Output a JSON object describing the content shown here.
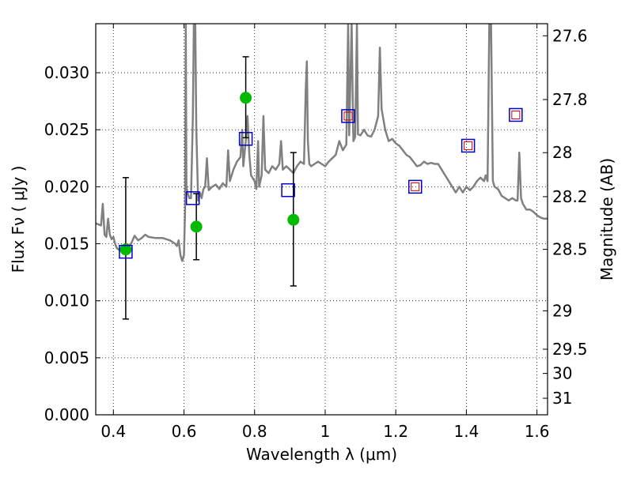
{
  "chart_data": {
    "type": "scatter",
    "title": "",
    "xlabel": "Wavelength  λ (μm)",
    "ylabel": "Flux  Fν  ( μJy )",
    "ylabel_right": "Magnitude (AB)",
    "xlim": [
      0.35,
      1.63
    ],
    "ylim": [
      0.0,
      0.0343
    ],
    "grid": true,
    "x_ticks": [
      0.4,
      0.6,
      0.8,
      1.0,
      1.2,
      1.4,
      1.6
    ],
    "x_tick_labels": [
      "0.4",
      "0.6",
      "0.8",
      "1",
      "1.2",
      "1.4",
      "1.6"
    ],
    "y_ticks": [
      0.0,
      0.005,
      0.01,
      0.015,
      0.02,
      0.025,
      0.03
    ],
    "y_tick_labels": [
      "0.000",
      "0.005",
      "0.010",
      "0.015",
      "0.020",
      "0.025",
      "0.030"
    ],
    "right_ticks": [
      {
        "label": "27.6",
        "flux": 0.03324
      },
      {
        "label": "27.8",
        "flux": 0.02765
      },
      {
        "label": "28",
        "flux": 0.02299
      },
      {
        "label": "28.2",
        "flux": 0.01913
      },
      {
        "label": "28.5",
        "flux": 0.01451
      },
      {
        "label": "29",
        "flux": 0.00912
      },
      {
        "label": "29.5",
        "flux": 0.00575
      },
      {
        "label": "30",
        "flux": 0.00363
      },
      {
        "label": "31",
        "flux": 0.00145
      }
    ],
    "series": [
      {
        "kind": "line",
        "color": "#808080",
        "points": [
          [
            0.35,
            0.0168
          ],
          [
            0.365,
            0.0166
          ],
          [
            0.37,
            0.0185
          ],
          [
            0.375,
            0.0158
          ],
          [
            0.38,
            0.0156
          ],
          [
            0.385,
            0.0172
          ],
          [
            0.39,
            0.0158
          ],
          [
            0.395,
            0.0154
          ],
          [
            0.4,
            0.0156
          ],
          [
            0.405,
            0.015
          ],
          [
            0.41,
            0.0146
          ],
          [
            0.42,
            0.0144
          ],
          [
            0.43,
            0.0143
          ],
          [
            0.44,
            0.0148
          ],
          [
            0.45,
            0.015
          ],
          [
            0.46,
            0.0157
          ],
          [
            0.47,
            0.0153
          ],
          [
            0.48,
            0.0155
          ],
          [
            0.49,
            0.0158
          ],
          [
            0.5,
            0.0156
          ],
          [
            0.52,
            0.0155
          ],
          [
            0.54,
            0.0155
          ],
          [
            0.56,
            0.0153
          ],
          [
            0.575,
            0.015
          ],
          [
            0.58,
            0.0148
          ],
          [
            0.585,
            0.0153
          ],
          [
            0.59,
            0.014
          ],
          [
            0.595,
            0.0135
          ],
          [
            0.6,
            0.014
          ],
          [
            0.603,
            0.018
          ],
          [
            0.605,
            0.0343
          ],
          [
            0.607,
            0.02
          ],
          [
            0.61,
            0.0195
          ],
          [
            0.615,
            0.019
          ],
          [
            0.62,
            0.019
          ],
          [
            0.625,
            0.026
          ],
          [
            0.628,
            0.0343
          ],
          [
            0.632,
            0.0343
          ],
          [
            0.635,
            0.025
          ],
          [
            0.64,
            0.0188
          ],
          [
            0.645,
            0.0195
          ],
          [
            0.65,
            0.019
          ],
          [
            0.655,
            0.0198
          ],
          [
            0.66,
            0.02
          ],
          [
            0.665,
            0.0225
          ],
          [
            0.67,
            0.0197
          ],
          [
            0.68,
            0.02
          ],
          [
            0.69,
            0.0202
          ],
          [
            0.7,
            0.0198
          ],
          [
            0.71,
            0.0203
          ],
          [
            0.72,
            0.02
          ],
          [
            0.725,
            0.0232
          ],
          [
            0.73,
            0.0205
          ],
          [
            0.74,
            0.0215
          ],
          [
            0.75,
            0.0222
          ],
          [
            0.76,
            0.0226
          ],
          [
            0.765,
            0.025
          ],
          [
            0.768,
            0.0218
          ],
          [
            0.775,
            0.024
          ],
          [
            0.78,
            0.0262
          ],
          [
            0.785,
            0.0228
          ],
          [
            0.79,
            0.021
          ],
          [
            0.8,
            0.0205
          ],
          [
            0.805,
            0.0198
          ],
          [
            0.81,
            0.024
          ],
          [
            0.813,
            0.02
          ],
          [
            0.82,
            0.021
          ],
          [
            0.825,
            0.0262
          ],
          [
            0.83,
            0.0215
          ],
          [
            0.84,
            0.0212
          ],
          [
            0.85,
            0.0218
          ],
          [
            0.86,
            0.0215
          ],
          [
            0.87,
            0.022
          ],
          [
            0.875,
            0.024
          ],
          [
            0.88,
            0.0215
          ],
          [
            0.89,
            0.0218
          ],
          [
            0.9,
            0.0215
          ],
          [
            0.91,
            0.0212
          ],
          [
            0.92,
            0.0218
          ],
          [
            0.93,
            0.0222
          ],
          [
            0.94,
            0.022
          ],
          [
            0.945,
            0.0285
          ],
          [
            0.948,
            0.031
          ],
          [
            0.951,
            0.024
          ],
          [
            0.955,
            0.022
          ],
          [
            0.96,
            0.0218
          ],
          [
            0.97,
            0.022
          ],
          [
            0.98,
            0.0222
          ],
          [
            0.99,
            0.022
          ],
          [
            1.0,
            0.0218
          ],
          [
            1.01,
            0.0222
          ],
          [
            1.02,
            0.0225
          ],
          [
            1.03,
            0.0228
          ],
          [
            1.04,
            0.024
          ],
          [
            1.05,
            0.0232
          ],
          [
            1.06,
            0.0237
          ],
          [
            1.065,
            0.0343
          ],
          [
            1.068,
            0.0245
          ],
          [
            1.075,
            0.0343
          ],
          [
            1.08,
            0.024
          ],
          [
            1.085,
            0.0244
          ],
          [
            1.09,
            0.0343
          ],
          [
            1.093,
            0.0246
          ],
          [
            1.1,
            0.0245
          ],
          [
            1.11,
            0.025
          ],
          [
            1.12,
            0.0245
          ],
          [
            1.13,
            0.0244
          ],
          [
            1.14,
            0.025
          ],
          [
            1.15,
            0.0262
          ],
          [
            1.155,
            0.0322
          ],
          [
            1.16,
            0.0268
          ],
          [
            1.17,
            0.025
          ],
          [
            1.18,
            0.024
          ],
          [
            1.19,
            0.0242
          ],
          [
            1.2,
            0.0238
          ],
          [
            1.21,
            0.0236
          ],
          [
            1.22,
            0.0232
          ],
          [
            1.23,
            0.0228
          ],
          [
            1.24,
            0.0226
          ],
          [
            1.25,
            0.0222
          ],
          [
            1.26,
            0.0218
          ],
          [
            1.27,
            0.0219
          ],
          [
            1.28,
            0.0222
          ],
          [
            1.29,
            0.022
          ],
          [
            1.3,
            0.0221
          ],
          [
            1.31,
            0.022
          ],
          [
            1.32,
            0.022
          ],
          [
            1.33,
            0.0215
          ],
          [
            1.34,
            0.021
          ],
          [
            1.35,
            0.0205
          ],
          [
            1.36,
            0.02
          ],
          [
            1.37,
            0.0195
          ],
          [
            1.38,
            0.02
          ],
          [
            1.39,
            0.0195
          ],
          [
            1.4,
            0.02
          ],
          [
            1.41,
            0.0197
          ],
          [
            1.42,
            0.02
          ],
          [
            1.43,
            0.0205
          ],
          [
            1.44,
            0.0208
          ],
          [
            1.45,
            0.0205
          ],
          [
            1.455,
            0.021
          ],
          [
            1.46,
            0.0205
          ],
          [
            1.465,
            0.0343
          ],
          [
            1.47,
            0.0343
          ],
          [
            1.475,
            0.0205
          ],
          [
            1.48,
            0.02
          ],
          [
            1.49,
            0.0198
          ],
          [
            1.5,
            0.0192
          ],
          [
            1.51,
            0.019
          ],
          [
            1.52,
            0.0188
          ],
          [
            1.53,
            0.019
          ],
          [
            1.54,
            0.0188
          ],
          [
            1.545,
            0.0188
          ],
          [
            1.55,
            0.023
          ],
          [
            1.555,
            0.019
          ],
          [
            1.56,
            0.0185
          ],
          [
            1.57,
            0.018
          ],
          [
            1.58,
            0.018
          ],
          [
            1.59,
            0.0178
          ],
          [
            1.6,
            0.0175
          ],
          [
            1.61,
            0.0173
          ],
          [
            1.62,
            0.0172
          ],
          [
            1.63,
            0.0172
          ]
        ]
      },
      {
        "kind": "errorbar",
        "color": "#000000",
        "points": [
          {
            "x": 0.435,
            "y": 0.0145,
            "lo": 0.0084,
            "hi": 0.0208
          },
          {
            "x": 0.635,
            "y": 0.0165,
            "lo": 0.0136,
            "hi": 0.0194
          },
          {
            "x": 0.775,
            "y": 0.0278,
            "lo": 0.0243,
            "hi": 0.0314
          },
          {
            "x": 0.91,
            "y": 0.0171,
            "lo": 0.0113,
            "hi": 0.023
          }
        ]
      },
      {
        "kind": "points",
        "marker": "circle",
        "color": "#00bb00",
        "points": [
          [
            0.435,
            0.0145
          ],
          [
            0.635,
            0.0165
          ],
          [
            0.775,
            0.0278
          ],
          [
            0.91,
            0.0171
          ]
        ]
      },
      {
        "kind": "points",
        "marker": "square",
        "color": "#0000cc",
        "points": [
          [
            0.435,
            0.0143
          ],
          [
            0.625,
            0.019
          ],
          [
            0.775,
            0.0242
          ],
          [
            0.895,
            0.0197
          ],
          [
            1.065,
            0.0262
          ],
          [
            1.255,
            0.02
          ],
          [
            1.405,
            0.0236
          ],
          [
            1.54,
            0.0263
          ]
        ]
      },
      {
        "kind": "points",
        "marker": "small-square",
        "color": "#cc0000",
        "points": [
          [
            1.065,
            0.0262
          ],
          [
            1.255,
            0.02
          ],
          [
            1.405,
            0.0236
          ],
          [
            1.54,
            0.0263
          ]
        ]
      }
    ]
  }
}
